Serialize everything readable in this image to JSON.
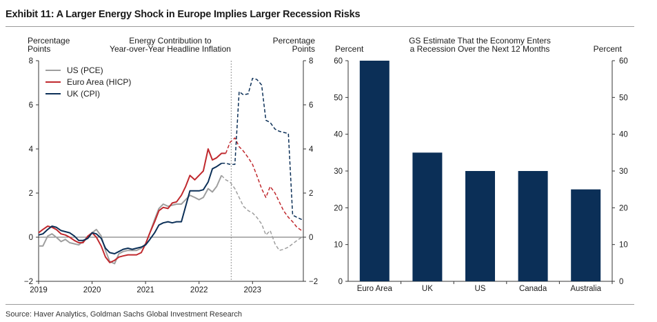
{
  "title": "Exhibit 11: A Larger Energy Shock in Europe Implies Larger Recession Risks",
  "source": "Source: Haver Analytics, Goldman Sachs Global Investment Research",
  "chart_data": [
    {
      "type": "line",
      "title": "Energy Contribution to Year-over-Year Headline Inflation",
      "title_lines": [
        "Energy Contribution to",
        "Year-over-Year Headline Inflation"
      ],
      "ylabel_left": [
        "Percentage",
        "Points"
      ],
      "ylabel_right": [
        "Percentage",
        "Points"
      ],
      "ylim": [
        -2,
        8
      ],
      "yticks": [
        -2,
        0,
        2,
        4,
        6,
        8
      ],
      "xlim": [
        2019.0,
        2023.95
      ],
      "xticks": [
        "2019",
        "2020",
        "2021",
        "2022",
        "2023"
      ],
      "forecast_start": 2022.6,
      "legend": [
        "US (PCE)",
        "Euro Area (HICP)",
        "UK (CPI)"
      ],
      "series": [
        {
          "name": "US (PCE)",
          "color": "#9e9e9e",
          "actual": [
            [
              2019.0,
              -0.4
            ],
            [
              2019.08,
              -0.4
            ],
            [
              2019.17,
              0.05
            ],
            [
              2019.25,
              0.15
            ],
            [
              2019.33,
              0.0
            ],
            [
              2019.42,
              -0.2
            ],
            [
              2019.5,
              -0.1
            ],
            [
              2019.58,
              -0.25
            ],
            [
              2019.67,
              -0.3
            ],
            [
              2019.75,
              -0.35
            ],
            [
              2019.83,
              -0.2
            ],
            [
              2019.92,
              -0.05
            ],
            [
              2020.0,
              0.2
            ],
            [
              2020.08,
              0.35
            ],
            [
              2020.17,
              0.05
            ],
            [
              2020.25,
              -0.6
            ],
            [
              2020.33,
              -1.1
            ],
            [
              2020.42,
              -1.2
            ],
            [
              2020.5,
              -0.75
            ],
            [
              2020.58,
              -0.65
            ],
            [
              2020.67,
              -0.6
            ],
            [
              2020.75,
              -0.6
            ],
            [
              2020.83,
              -0.6
            ],
            [
              2020.92,
              -0.5
            ],
            [
              2021.0,
              -0.3
            ],
            [
              2021.08,
              0.2
            ],
            [
              2021.17,
              0.8
            ],
            [
              2021.25,
              1.3
            ],
            [
              2021.33,
              1.5
            ],
            [
              2021.42,
              1.4
            ],
            [
              2021.5,
              1.45
            ],
            [
              2021.58,
              1.5
            ],
            [
              2021.67,
              1.5
            ],
            [
              2021.75,
              1.7
            ],
            [
              2021.83,
              1.9
            ],
            [
              2021.92,
              1.8
            ],
            [
              2022.0,
              1.7
            ],
            [
              2022.08,
              1.8
            ],
            [
              2022.17,
              2.2
            ],
            [
              2022.25,
              2.05
            ],
            [
              2022.33,
              2.3
            ],
            [
              2022.42,
              2.8
            ]
          ],
          "forecast": [
            [
              2022.42,
              2.8
            ],
            [
              2022.5,
              2.6
            ],
            [
              2022.58,
              2.5
            ],
            [
              2022.67,
              2.2
            ],
            [
              2022.75,
              1.8
            ],
            [
              2022.83,
              1.4
            ],
            [
              2022.92,
              1.2
            ],
            [
              2023.0,
              1.1
            ],
            [
              2023.08,
              0.9
            ],
            [
              2023.17,
              0.6
            ],
            [
              2023.25,
              0.1
            ],
            [
              2023.33,
              0.3
            ],
            [
              2023.42,
              -0.3
            ],
            [
              2023.5,
              -0.6
            ],
            [
              2023.58,
              -0.55
            ],
            [
              2023.67,
              -0.45
            ],
            [
              2023.75,
              -0.3
            ],
            [
              2023.83,
              -0.15
            ],
            [
              2023.92,
              0.0
            ]
          ]
        },
        {
          "name": "Euro Area (HICP)",
          "color": "#c0282d",
          "actual": [
            [
              2019.0,
              0.2
            ],
            [
              2019.08,
              0.35
            ],
            [
              2019.17,
              0.5
            ],
            [
              2019.25,
              0.45
            ],
            [
              2019.33,
              0.35
            ],
            [
              2019.42,
              0.15
            ],
            [
              2019.5,
              0.1
            ],
            [
              2019.58,
              0.0
            ],
            [
              2019.67,
              -0.15
            ],
            [
              2019.75,
              -0.25
            ],
            [
              2019.83,
              -0.25
            ],
            [
              2019.92,
              0.05
            ],
            [
              2020.0,
              0.2
            ],
            [
              2020.08,
              0.0
            ],
            [
              2020.17,
              -0.4
            ],
            [
              2020.25,
              -0.9
            ],
            [
              2020.33,
              -1.15
            ],
            [
              2020.42,
              -1.05
            ],
            [
              2020.5,
              -0.9
            ],
            [
              2020.58,
              -0.85
            ],
            [
              2020.67,
              -0.8
            ],
            [
              2020.75,
              -0.8
            ],
            [
              2020.83,
              -0.8
            ],
            [
              2020.92,
              -0.7
            ],
            [
              2021.0,
              -0.3
            ],
            [
              2021.08,
              0.2
            ],
            [
              2021.17,
              0.7
            ],
            [
              2021.25,
              1.2
            ],
            [
              2021.33,
              1.35
            ],
            [
              2021.42,
              1.3
            ],
            [
              2021.5,
              1.55
            ],
            [
              2021.58,
              1.6
            ],
            [
              2021.67,
              1.9
            ],
            [
              2021.75,
              2.3
            ],
            [
              2021.83,
              2.8
            ],
            [
              2021.92,
              2.6
            ],
            [
              2022.0,
              2.8
            ],
            [
              2022.08,
              3.0
            ],
            [
              2022.17,
              4.0
            ],
            [
              2022.25,
              3.5
            ],
            [
              2022.33,
              3.6
            ],
            [
              2022.42,
              3.8
            ],
            [
              2022.5,
              3.8
            ]
          ],
          "forecast": [
            [
              2022.5,
              3.8
            ],
            [
              2022.58,
              4.3
            ],
            [
              2022.67,
              4.5
            ],
            [
              2022.75,
              4.1
            ],
            [
              2022.83,
              3.9
            ],
            [
              2022.92,
              3.6
            ],
            [
              2023.0,
              3.3
            ],
            [
              2023.08,
              2.8
            ],
            [
              2023.17,
              2.2
            ],
            [
              2023.25,
              1.8
            ],
            [
              2023.33,
              2.3
            ],
            [
              2023.42,
              2.0
            ],
            [
              2023.5,
              1.6
            ],
            [
              2023.58,
              1.2
            ],
            [
              2023.67,
              0.9
            ],
            [
              2023.75,
              0.7
            ],
            [
              2023.83,
              0.45
            ],
            [
              2023.92,
              0.3
            ]
          ]
        },
        {
          "name": "UK (CPI)",
          "color": "#0b2f57",
          "actual": [
            [
              2019.0,
              0.1
            ],
            [
              2019.08,
              0.15
            ],
            [
              2019.17,
              0.35
            ],
            [
              2019.25,
              0.5
            ],
            [
              2019.33,
              0.45
            ],
            [
              2019.42,
              0.3
            ],
            [
              2019.5,
              0.25
            ],
            [
              2019.58,
              0.2
            ],
            [
              2019.67,
              0.05
            ],
            [
              2019.75,
              -0.15
            ],
            [
              2019.83,
              -0.15
            ],
            [
              2019.92,
              -0.05
            ],
            [
              2020.0,
              0.2
            ],
            [
              2020.08,
              0.15
            ],
            [
              2020.17,
              -0.05
            ],
            [
              2020.25,
              -0.5
            ],
            [
              2020.33,
              -0.7
            ],
            [
              2020.42,
              -0.75
            ],
            [
              2020.5,
              -0.65
            ],
            [
              2020.58,
              -0.55
            ],
            [
              2020.67,
              -0.5
            ],
            [
              2020.75,
              -0.55
            ],
            [
              2020.83,
              -0.5
            ],
            [
              2020.92,
              -0.45
            ],
            [
              2021.0,
              -0.35
            ],
            [
              2021.08,
              -0.1
            ],
            [
              2021.17,
              0.2
            ],
            [
              2021.25,
              0.55
            ],
            [
              2021.33,
              0.65
            ],
            [
              2021.42,
              0.7
            ],
            [
              2021.5,
              0.65
            ],
            [
              2021.58,
              0.7
            ],
            [
              2021.67,
              0.7
            ],
            [
              2021.75,
              1.4
            ],
            [
              2021.83,
              2.1
            ],
            [
              2021.92,
              2.1
            ],
            [
              2022.0,
              2.1
            ],
            [
              2022.08,
              2.15
            ],
            [
              2022.17,
              2.5
            ],
            [
              2022.25,
              3.1
            ],
            [
              2022.33,
              3.2
            ],
            [
              2022.42,
              3.35
            ]
          ],
          "forecast": [
            [
              2022.42,
              3.35
            ],
            [
              2022.5,
              3.35
            ],
            [
              2022.58,
              3.3
            ],
            [
              2022.67,
              3.3
            ],
            [
              2022.75,
              6.6
            ],
            [
              2022.83,
              6.45
            ],
            [
              2022.92,
              6.5
            ],
            [
              2023.0,
              7.2
            ],
            [
              2023.08,
              7.15
            ],
            [
              2023.17,
              6.9
            ],
            [
              2023.25,
              5.3
            ],
            [
              2023.33,
              5.2
            ],
            [
              2023.42,
              4.9
            ],
            [
              2023.5,
              4.8
            ],
            [
              2023.58,
              4.75
            ],
            [
              2023.67,
              4.7
            ],
            [
              2023.75,
              1.0
            ],
            [
              2023.83,
              0.9
            ],
            [
              2023.92,
              0.8
            ]
          ]
        }
      ]
    },
    {
      "type": "bar",
      "title": "GS Estimate That the Economy Enters a Recession Over the Next 12 Months",
      "title_lines": [
        "GS Estimate That the Economy Enters",
        "a Recession Over the Next 12 Months"
      ],
      "ylabel_left": "Percent",
      "ylabel_right": "Percent",
      "ylim": [
        0,
        60
      ],
      "yticks": [
        0,
        10,
        20,
        30,
        40,
        50,
        60
      ],
      "categories": [
        "Euro Area",
        "UK",
        "US",
        "Canada",
        "Australia"
      ],
      "values": [
        60,
        35,
        30,
        30,
        25
      ],
      "color": "#0b2f57"
    }
  ]
}
